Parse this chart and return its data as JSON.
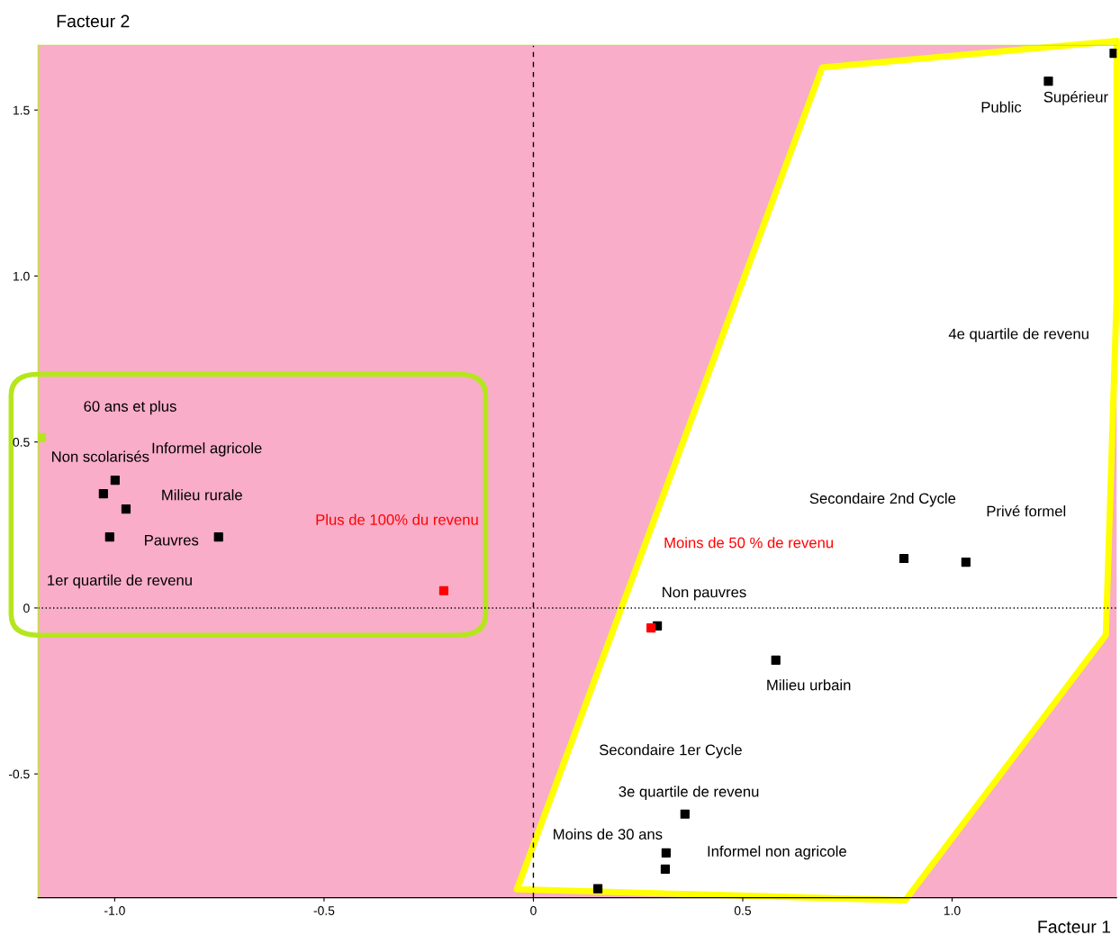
{
  "chart_data": {
    "type": "scatter",
    "xlabel": "Facteur 1",
    "ylabel": "Facteur 2",
    "series": [
      {
        "color": "#000000",
        "x": [
          -0.999,
          -1.027,
          -0.973,
          -1.012,
          -0.752,
          1.23,
          1.387,
          0.885,
          1.033,
          0.296,
          0.579,
          0.362,
          0.317,
          0.315,
          0.154
        ],
        "values": [
          0.385,
          0.344,
          0.298,
          0.214,
          0.214,
          1.587,
          1.671,
          0.149,
          0.138,
          -0.054,
          -0.157,
          -0.621,
          -0.738,
          -0.787,
          -0.846
        ]
      },
      {
        "color": "#ff0000",
        "x": [
          -0.214,
          0.281
        ],
        "values": [
          0.052,
          -0.06
        ]
      },
      {
        "color": "#b5e61d",
        "x": [
          -1.175
        ],
        "values": [
          0.513
        ]
      }
    ],
    "marker": "square",
    "xlim": [
      -1.183,
      1.393
    ],
    "ylim": [
      -0.873,
      1.695
    ],
    "xticks": [
      {
        "value": -1.0,
        "label": "-1.0"
      },
      {
        "value": -0.5,
        "label": "-0.5"
      },
      0,
      0.5,
      {
        "value": 1.0,
        "label": "1.0"
      }
    ],
    "yticks": [
      {
        "value": -0.5,
        "label": "-0.5"
      },
      0,
      0.5,
      {
        "value": 1.0,
        "label": "1.0"
      },
      1.5
    ],
    "ref_lines": [
      {
        "axis": "x",
        "value": 0,
        "line_style": "dashed",
        "color": "#000000"
      },
      {
        "axis": "y",
        "value": 0,
        "line_style": "dotted",
        "color": "#000000"
      }
    ],
    "grid": false,
    "legend": false,
    "annotations": [
      "60 ans et plus",
      "Non scolarisés",
      "Informel agricole",
      "Milieu rurale",
      "Pauvres",
      "1er quartile de revenu",
      "Plus de 100% du revenu",
      "Public",
      "Supérieur",
      "4e quartile de revenu",
      "Secondaire 2nd Cycle",
      "Privé formel",
      "Moins de 50 % de revenu",
      "Non pauvres",
      "Milieu urbain",
      "Secondaire 1er Cycle",
      "3e quartile de revenu",
      "Moins de 30 ans",
      "Informel non agricole"
    ]
  }
}
